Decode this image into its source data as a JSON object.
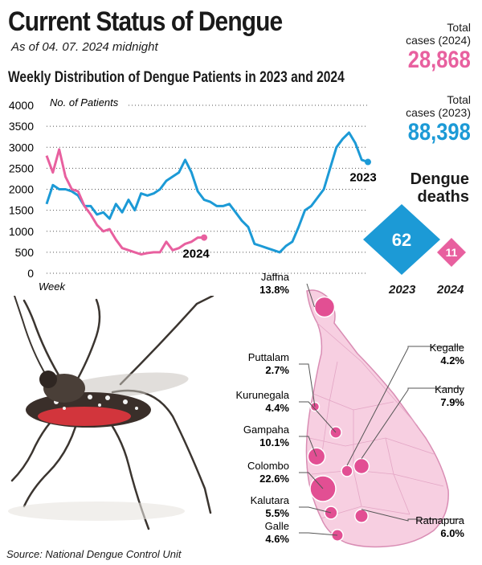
{
  "header": {
    "title": "Current Status of Dengue",
    "as_of": "As of 04. 07. 2024 midnight",
    "subtitle": "Weekly Distribution of Dengue Patients in 2023 and 2024"
  },
  "totals": {
    "cases_2024_label_line1": "Total",
    "cases_2024_label_line2": "cases (2024)",
    "cases_2024_value": "28,868",
    "cases_2023_label_line1": "Total",
    "cases_2023_label_line2": "cases (2023)",
    "cases_2023_value": "88,398"
  },
  "deaths": {
    "label_line1": "Dengue",
    "label_line2": "deaths",
    "value_2023": "62",
    "value_2024": "11",
    "year_2023": "2023",
    "year_2024": "2024",
    "values": {
      "2023": 62,
      "2024": 11
    }
  },
  "colors": {
    "series_2023": "#1c9ad6",
    "series_2024": "#e8609f",
    "map_fill": "#f7cfe1",
    "map_border": "#d98db4",
    "bubble": "#e24f93"
  },
  "chart_data": [
    {
      "type": "line",
      "title": "Weekly Distribution of Dengue Patients in 2023 and 2024",
      "ylabel": "No. of Patients",
      "xlabel": "Week",
      "ylim": [
        0,
        4000
      ],
      "yticks": [
        0,
        500,
        1000,
        1500,
        2000,
        2500,
        3000,
        3500,
        4000
      ],
      "ytick_labels": [
        "0",
        "500",
        "1000",
        "1500",
        "2000",
        "2500",
        "3000",
        "3500",
        "4000"
      ],
      "grid": "dotted horizontal",
      "series": [
        {
          "name": "2023",
          "x": [
            1,
            2,
            3,
            4,
            5,
            6,
            7,
            8,
            9,
            10,
            11,
            12,
            13,
            14,
            15,
            16,
            17,
            18,
            19,
            20,
            21,
            22,
            23,
            24,
            25,
            26,
            27,
            28,
            29,
            30,
            31,
            32,
            33,
            34,
            35,
            36,
            37,
            38,
            39,
            40,
            41,
            42,
            43,
            44,
            45,
            46,
            47,
            48,
            49,
            50,
            51,
            52
          ],
          "values": [
            1650,
            2100,
            2000,
            2000,
            1950,
            1850,
            1600,
            1600,
            1400,
            1450,
            1300,
            1650,
            1450,
            1750,
            1500,
            1900,
            1850,
            1900,
            2000,
            2200,
            2300,
            2400,
            2700,
            2400,
            1950,
            1750,
            1700,
            1600,
            1600,
            1650,
            1450,
            1250,
            1100,
            700,
            650,
            600,
            550,
            500,
            650,
            750,
            1100,
            1500,
            1600,
            1800,
            2000,
            2500,
            3000,
            3200,
            3350,
            3100,
            2700,
            2650
          ],
          "end_label": "2023"
        },
        {
          "name": "2024",
          "x": [
            1,
            2,
            3,
            4,
            5,
            6,
            7,
            8,
            9,
            10,
            11,
            12,
            13,
            14,
            15,
            16,
            17,
            18,
            19,
            20,
            21,
            22,
            23,
            24,
            25,
            26
          ],
          "values": [
            2800,
            2400,
            2950,
            2300,
            2000,
            1950,
            1600,
            1400,
            1150,
            1000,
            1050,
            800,
            600,
            550,
            500,
            450,
            480,
            500,
            500,
            750,
            550,
            600,
            700,
            750,
            850,
            850
          ],
          "end_label": "2024"
        }
      ]
    },
    {
      "type": "map",
      "title": "",
      "units": "% of cases",
      "districts": [
        {
          "name": "Jaffna",
          "value": 13.8,
          "label": "13.8%"
        },
        {
          "name": "Puttalam",
          "value": 2.7,
          "label": "2.7%"
        },
        {
          "name": "Kurunegala",
          "value": 4.4,
          "label": "4.4%"
        },
        {
          "name": "Gampaha",
          "value": 10.1,
          "label": "10.1%"
        },
        {
          "name": "Colombo",
          "value": 22.6,
          "label": "22.6%"
        },
        {
          "name": "Kalutara",
          "value": 5.5,
          "label": "5.5%"
        },
        {
          "name": "Galle",
          "value": 4.6,
          "label": "4.6%"
        },
        {
          "name": "Kegalle",
          "value": 4.2,
          "label": "4.2%"
        },
        {
          "name": "Kandy",
          "value": 7.9,
          "label": "7.9%"
        },
        {
          "name": "Ratnapura",
          "value": 6.0,
          "label": "6.0%"
        }
      ]
    }
  ],
  "source": "Source: National Dengue Control Unit"
}
